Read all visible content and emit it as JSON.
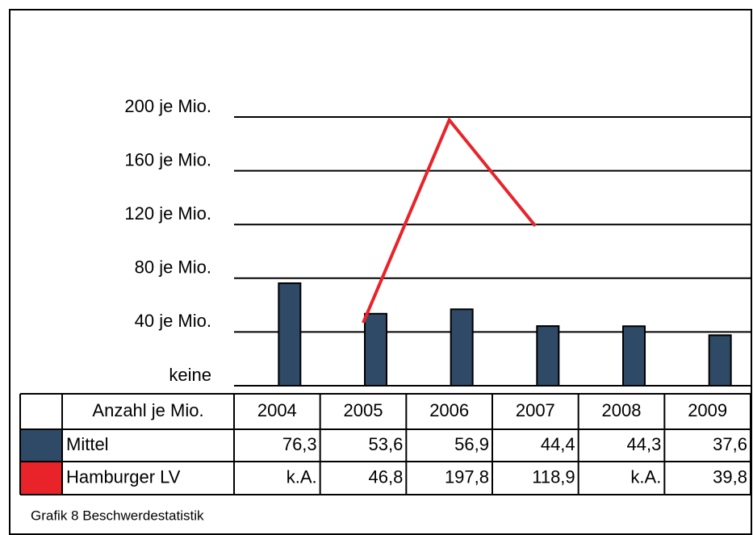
{
  "chart_data": {
    "type": "bar-line-table",
    "categories": [
      "2004",
      "2005",
      "2006",
      "2007",
      "2008",
      "2009"
    ],
    "table_header": "Anzahl je Mio.",
    "series": [
      {
        "name": "Mittel",
        "type": "bar",
        "color": "#2e4a66",
        "values": [
          76.3,
          53.6,
          56.9,
          44.4,
          44.3,
          37.6
        ],
        "value_labels": [
          "76,3",
          "53,6",
          "56,9",
          "44,4",
          "44,3",
          "37,6"
        ]
      },
      {
        "name": "Hamburger LV",
        "type": "line",
        "color": "#e8232a",
        "values": [
          null,
          46.8,
          197.8,
          118.9,
          null,
          39.8
        ],
        "value_labels": [
          "k.A.",
          "46,8",
          "197,8",
          "118,9",
          "k.A.",
          "39,8"
        ]
      }
    ],
    "ylim": [
      0,
      200
    ],
    "yticks": [
      {
        "value": 0,
        "label": "keine"
      },
      {
        "value": 40,
        "label": "40 je Mio."
      },
      {
        "value": 80,
        "label": "80 je Mio."
      },
      {
        "value": 120,
        "label": "120 je Mio."
      },
      {
        "value": 160,
        "label": "160 je Mio."
      },
      {
        "value": 200,
        "label": "200 je Mio."
      }
    ],
    "grid": true,
    "caption": "Grafik 8 Beschwerdestatistik"
  }
}
